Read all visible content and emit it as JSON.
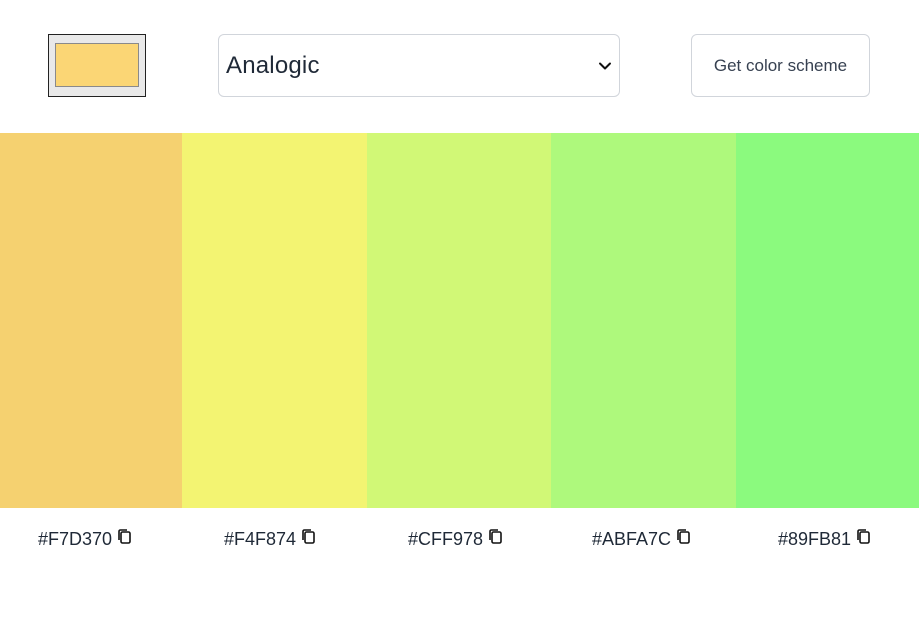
{
  "seed": {
    "color": "#FBD675",
    "icon": "color-swatch"
  },
  "mode": {
    "selected": "Analogic"
  },
  "button": {
    "label": "Get color scheme"
  },
  "colors": [
    {
      "hex": "#F7D370",
      "swatch": "#F5D170"
    },
    {
      "hex": "#F4F874",
      "swatch": "#F3F472"
    },
    {
      "hex": "#CFF978",
      "swatch": "#D1F876"
    },
    {
      "hex": "#ABFA7C",
      "swatch": "#AEF97C"
    },
    {
      "hex": "#89FB81",
      "swatch": "#8BFA7E"
    }
  ],
  "icons": {
    "copy": "copy-icon",
    "chevron": "chevron-down-icon"
  }
}
